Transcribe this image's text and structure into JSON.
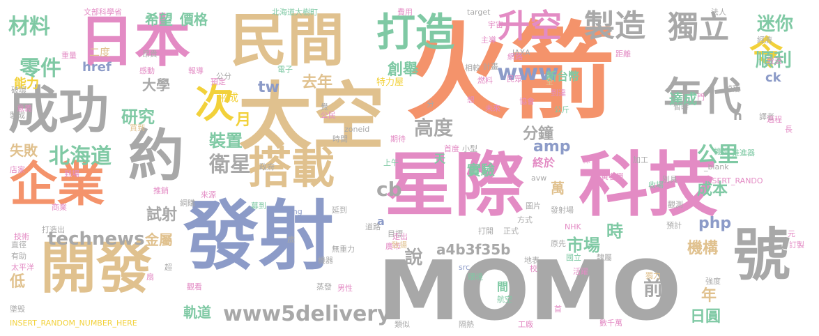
{
  "palette": {
    "orange": "#f4936b",
    "slate": "#8c9bc8",
    "pink": "#e38bc4",
    "green": "#7fc9a4",
    "tan": "#e0c18e",
    "grey": "#a8a8a8",
    "yellow": "#f2d13a",
    "lime": "#b5d76b"
  },
  "words": [
    {
      "t": "火箭",
      "c": "orange"
    },
    {
      "t": "MOMO",
      "c": "grey"
    },
    {
      "t": "發射",
      "c": "slate"
    },
    {
      "t": "太空",
      "c": "tan"
    },
    {
      "t": "星際",
      "c": "pink"
    },
    {
      "t": "科技",
      "c": "pink"
    },
    {
      "t": "民間",
      "c": "tan"
    },
    {
      "t": "日本",
      "c": "pink"
    },
    {
      "t": "開發",
      "c": "tan"
    },
    {
      "t": "企業",
      "c": "orange"
    },
    {
      "t": "成功",
      "c": "grey"
    },
    {
      "t": "號",
      "c": "grey"
    },
    {
      "t": "約",
      "c": "grey"
    },
    {
      "t": "搭載",
      "c": "tan"
    },
    {
      "t": "次",
      "c": "yellow"
    },
    {
      "t": "年代",
      "c": "grey"
    },
    {
      "t": "令",
      "c": "yellow"
    },
    {
      "t": "打造",
      "c": "green"
    },
    {
      "t": "升空",
      "c": "pink"
    },
    {
      "t": "製造",
      "c": "grey"
    },
    {
      "t": "獨立",
      "c": "grey"
    },
    {
      "t": "材料",
      "c": "green"
    },
    {
      "t": "零件",
      "c": "green"
    },
    {
      "t": "www5delivery",
      "c": "grey"
    },
    {
      "t": "technews",
      "c": "grey"
    },
    {
      "t": "北海道",
      "c": "green"
    },
    {
      "t": "衛星",
      "c": "grey"
    },
    {
      "t": "公里",
      "c": "green"
    },
    {
      "t": "迷你",
      "c": "green"
    },
    {
      "t": "順利",
      "c": "green"
    },
    {
      "t": "希望",
      "c": "green"
    },
    {
      "t": "價格",
      "c": "green"
    },
    {
      "t": "研究",
      "c": "green"
    },
    {
      "t": "大學",
      "c": "grey"
    },
    {
      "t": "www",
      "c": "slate"
    },
    {
      "t": "創舉",
      "c": "green"
    },
    {
      "t": "高度",
      "c": "grey"
    },
    {
      "t": "分鐘",
      "c": "grey"
    },
    {
      "t": "amp",
      "c": "slate"
    },
    {
      "t": "裝置",
      "c": "green"
    },
    {
      "t": "市場",
      "c": "green"
    },
    {
      "t": "時",
      "c": "green"
    },
    {
      "t": "說",
      "c": "grey"
    },
    {
      "t": "前",
      "c": "grey"
    },
    {
      "t": "成本",
      "c": "green"
    },
    {
      "t": "機構",
      "c": "tan"
    },
    {
      "t": "php",
      "c": "slate"
    },
    {
      "t": "a4b3f35b",
      "c": "grey"
    },
    {
      "t": "cb",
      "c": "grey"
    },
    {
      "t": "tw",
      "c": "slate"
    },
    {
      "t": "月",
      "c": "yellow"
    },
    {
      "t": "去年",
      "c": "tan"
    },
    {
      "t": "能力",
      "c": "yellow"
    },
    {
      "t": "失敗",
      "c": "tan"
    },
    {
      "t": "低",
      "c": "tan"
    },
    {
      "t": "軌道",
      "c": "green"
    },
    {
      "t": "日圓",
      "c": "green"
    },
    {
      "t": "年",
      "c": "tan"
    },
    {
      "t": "金屬",
      "c": "tan"
    },
    {
      "t": "試射",
      "c": "grey"
    },
    {
      "t": "實驗",
      "c": "green"
    },
    {
      "t": "萬",
      "c": "tan"
    },
    {
      "t": "達成",
      "c": "green"
    },
    {
      "t": "終於",
      "c": "pink"
    },
    {
      "t": "天",
      "c": "green"
    },
    {
      "t": "二度",
      "c": "tan"
    },
    {
      "t": "href",
      "c": "slate"
    },
    {
      "t": "平成",
      "c": "yellow"
    },
    {
      "t": "ck",
      "c": "slate"
    },
    {
      "t": "n",
      "c": "grey"
    },
    {
      "t": "a",
      "c": "slate"
    },
    {
      "t": "間",
      "c": "green"
    },
    {
      "t": "新台幣",
      "c": "green"
    },
    {
      "t": "特力屋",
      "c": "yellow"
    },
    {
      "t": "文部科學省",
      "c": "pink"
    },
    {
      "t": "北海道大樹町",
      "c": "green"
    },
    {
      "t": "費用",
      "c": "pink"
    },
    {
      "t": "target",
      "c": "grey"
    },
    {
      "t": "法人",
      "c": "grey"
    },
    {
      "t": "宇宙",
      "c": "pink"
    },
    {
      "t": "經濟",
      "c": "grey"
    },
    {
      "t": "主導",
      "c": "pink"
    },
    {
      "t": "計畫",
      "c": "grey"
    },
    {
      "t": "相較",
      "c": "grey"
    },
    {
      "t": "JAXA",
      "c": "grey"
    },
    {
      "t": "網路",
      "c": "pink"
    },
    {
      "t": "距離",
      "c": "pink"
    },
    {
      "t": "放送",
      "c": "pink"
    },
    {
      "t": "重量",
      "c": "pink"
    },
    {
      "t": "昂貴",
      "c": "grey"
    },
    {
      "t": "感動",
      "c": "pink"
    },
    {
      "t": "報導",
      "c": "pink"
    },
    {
      "t": "公分",
      "c": "grey"
    },
    {
      "t": "電子",
      "c": "green"
    },
    {
      "t": "預定",
      "c": "pink"
    },
    {
      "t": "燃料",
      "c": "pink"
    },
    {
      "t": "民眾",
      "c": "pink"
    },
    {
      "t": "全",
      "c": "tan"
    },
    {
      "t": "到達",
      "c": "pink"
    },
    {
      "t": "掉落",
      "c": "grey"
    },
    {
      "t": "破壞",
      "c": "grey"
    },
    {
      "t": "意義",
      "c": "pink"
    },
    {
      "t": "製成",
      "c": "grey"
    },
    {
      "t": "買到",
      "c": "tan"
    },
    {
      "t": "公民",
      "c": "pink"
    },
    {
      "t": "未來",
      "c": "pink"
    },
    {
      "t": "協會",
      "c": "pink"
    },
    {
      "t": "門",
      "c": "pink"
    },
    {
      "t": "暫時",
      "c": "grey"
    },
    {
      "t": "公斤",
      "c": "green"
    },
    {
      "t": "譯者",
      "c": "grey"
    },
    {
      "t": "過程",
      "c": "pink"
    },
    {
      "t": "長",
      "c": "pink"
    },
    {
      "t": "zoneid",
      "c": "grey"
    },
    {
      "t": "時間",
      "c": "grey"
    },
    {
      "t": "期待",
      "c": "pink"
    },
    {
      "t": "首度",
      "c": "pink"
    },
    {
      "t": "小型",
      "c": "grey"
    },
    {
      "t": "機體",
      "c": "green"
    },
    {
      "t": "推進器",
      "c": "green"
    },
    {
      "t": "店家",
      "c": "pink"
    },
    {
      "t": "到場",
      "c": "pink"
    },
    {
      "t": "政府",
      "c": "grey"
    },
    {
      "t": "上午",
      "c": "green"
    },
    {
      "t": "條",
      "c": "pink"
    },
    {
      "t": "帶",
      "c": "pink"
    },
    {
      "t": "加工",
      "c": "grey"
    },
    {
      "t": "_blank",
      "c": "grey"
    },
    {
      "t": "黃名單",
      "c": "pink"
    },
    {
      "t": "收場",
      "c": "green"
    },
    {
      "t": "INSERT_RANDO",
      "c": "pink"
    },
    {
      "t": "推銷",
      "c": "pink"
    },
    {
      "t": "來源",
      "c": "pink"
    },
    {
      "t": "網購",
      "c": "grey"
    },
    {
      "t": "募到",
      "c": "green"
    },
    {
      "t": "avw",
      "c": "grey"
    },
    {
      "t": "別具",
      "c": "grey"
    },
    {
      "t": "發射場",
      "c": "grey"
    },
    {
      "t": "觀測",
      "c": "grey"
    },
    {
      "t": "圖片",
      "c": "grey"
    },
    {
      "t": "延到",
      "c": "grey"
    },
    {
      "t": "img",
      "c": "slate"
    },
    {
      "t": "商業",
      "c": "pink"
    },
    {
      "t": "打造出",
      "c": "grey"
    },
    {
      "t": "技術",
      "c": "pink"
    },
    {
      "t": "目標",
      "c": "grey"
    },
    {
      "t": "方式",
      "c": "grey"
    },
    {
      "t": "NHK",
      "c": "pink"
    },
    {
      "t": "預計",
      "c": "grey"
    },
    {
      "t": "直徑",
      "c": "grey"
    },
    {
      "t": "道路",
      "c": "grey"
    },
    {
      "t": "打開",
      "c": "grey"
    },
    {
      "t": "正式",
      "c": "grey"
    },
    {
      "t": "原先",
      "c": "grey"
    },
    {
      "t": "元",
      "c": "pink"
    },
    {
      "t": "訂製",
      "c": "pink"
    },
    {
      "t": "歲",
      "c": "grey"
    },
    {
      "t": "走出",
      "c": "pink"
    },
    {
      "t": "無重力",
      "c": "grey"
    },
    {
      "t": "廣市",
      "c": "pink"
    },
    {
      "t": "致揚",
      "c": "tan"
    },
    {
      "t": "有助",
      "c": "grey"
    },
    {
      "t": "太平洋",
      "c": "pink"
    },
    {
      "t": "機器",
      "c": "grey"
    },
    {
      "t": "src",
      "c": "slate"
    },
    {
      "t": "地表",
      "c": "grey"
    },
    {
      "t": "國立",
      "c": "green"
    },
    {
      "t": "隸屬",
      "c": "grey"
    },
    {
      "t": "環境",
      "c": "green"
    },
    {
      "t": "校",
      "c": "pink"
    },
    {
      "t": "活躍",
      "c": "pink"
    },
    {
      "t": "獨力",
      "c": "tan"
    },
    {
      "t": "扇",
      "c": "pink"
    },
    {
      "t": "觀看",
      "c": "pink"
    },
    {
      "t": "蒸發",
      "c": "grey"
    },
    {
      "t": "男性",
      "c": "pink"
    },
    {
      "t": "航空",
      "c": "green"
    },
    {
      "t": "強度",
      "c": "grey"
    },
    {
      "t": "墜毀",
      "c": "grey"
    },
    {
      "t": "首",
      "c": "pink"
    },
    {
      "t": "INSERT_RANDOM_NUMBER_HERE",
      "c": "yellow"
    },
    {
      "t": "類似",
      "c": "grey"
    },
    {
      "t": "隔熱",
      "c": "grey"
    },
    {
      "t": "工廠",
      "c": "pink"
    },
    {
      "t": "數千萬",
      "c": "pink"
    },
    {
      "t": "超",
      "c": "grey"
    },
    {
      "t": "分",
      "c": "grey"
    },
    {
      "t": "想",
      "c": "pink"
    },
    {
      "t": "覺",
      "c": "grey"
    }
  ]
}
